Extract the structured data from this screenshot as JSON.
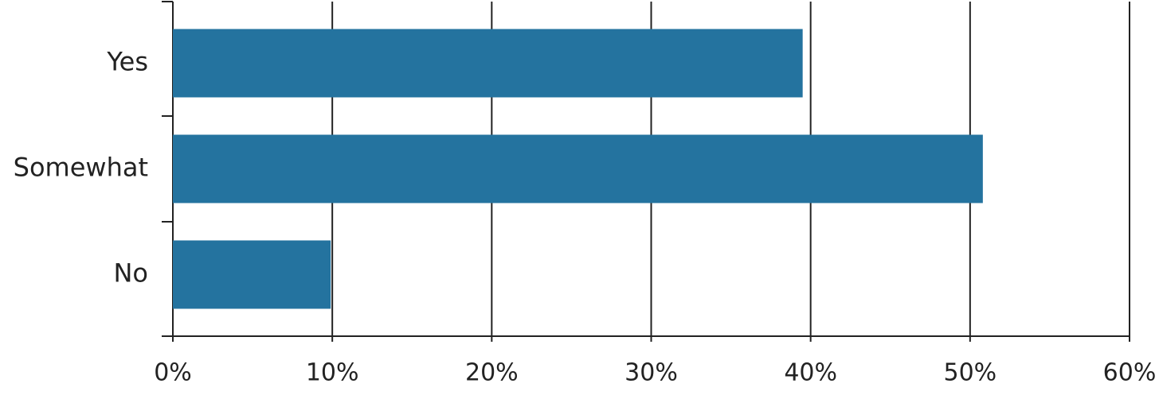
{
  "chart_data": {
    "type": "hbar",
    "categories": [
      "Yes",
      "Somewhat",
      "No"
    ],
    "values": [
      39.5,
      50.8,
      9.9
    ],
    "color": "#24739f",
    "xlim": [
      0,
      60
    ],
    "xticks": [
      {
        "value": 0,
        "label": "0%"
      },
      {
        "value": 10,
        "label": "10%"
      },
      {
        "value": 20,
        "label": "20%"
      },
      {
        "value": 30,
        "label": "30%"
      },
      {
        "value": 40,
        "label": "40%"
      },
      {
        "value": 50,
        "label": "50%"
      },
      {
        "value": 60,
        "label": "60%"
      }
    ],
    "grid": true
  }
}
